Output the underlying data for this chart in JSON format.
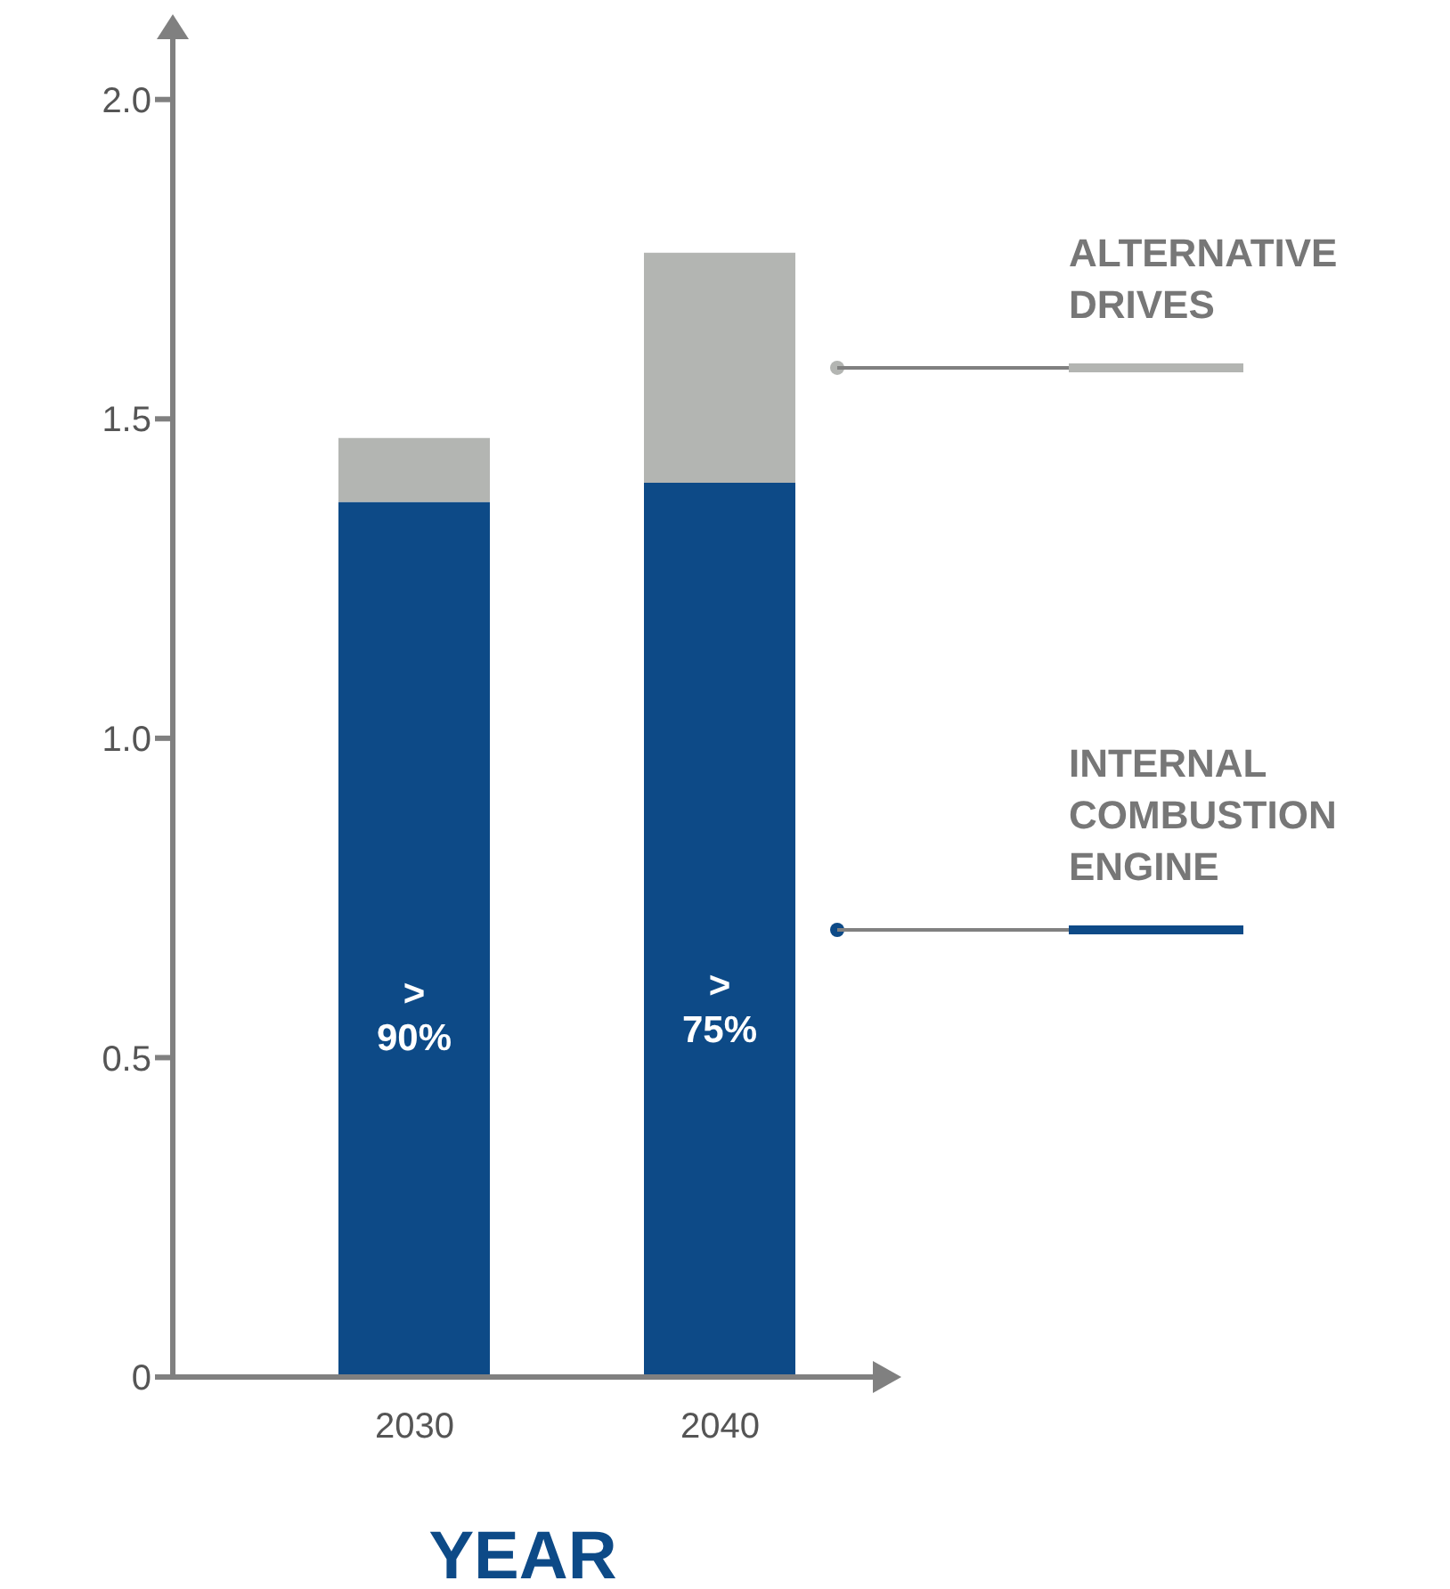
{
  "chart_data": {
    "type": "bar",
    "stacked": true,
    "xlabel": "YEAR",
    "categories": [
      "2030",
      "2040"
    ],
    "series": [
      {
        "name": "INTERNAL COMBUSTION ENGINE",
        "color": "#0d4a87",
        "values": [
          1.37,
          1.4
        ],
        "value_labels": [
          "> 90%",
          "> 75%"
        ]
      },
      {
        "name": "ALTERNATIVE DRIVES",
        "color": "#b3b5b2",
        "values": [
          0.1,
          0.36
        ]
      }
    ],
    "ylim": [
      0,
      2.1
    ],
    "yticks": [
      0,
      0.5,
      {
        "value": 1,
        "label": "1.0"
      },
      1.5,
      {
        "value": 2,
        "label": "2.0"
      }
    ],
    "grid": false,
    "legend": "right"
  }
}
